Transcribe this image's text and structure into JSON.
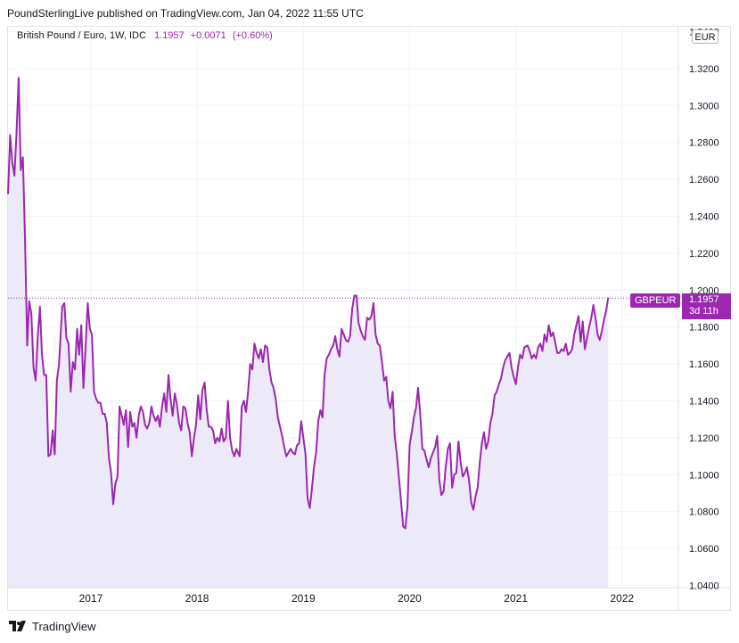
{
  "publisher_line": "PoundSterlingLive published on TradingView.com, Jan 04, 2022 11:55 UTC",
  "legend": {
    "symbol": "British Pound / Euro, 1W, IDC",
    "last": "1.1957",
    "change": "+0.0071",
    "change_pct": "(+0.60%)"
  },
  "currency_button": "EUR",
  "symbol_badge": "GBPEUR",
  "price_badge": {
    "price": "1.1957",
    "countdown": "3d 11h"
  },
  "footer": {
    "brand": "TradingView"
  },
  "colors": {
    "line": "#9c27b0",
    "fill": "#e8e7f7",
    "grid": "#f0f3fa"
  },
  "chart_data": {
    "type": "area",
    "title": "British Pound / Euro, 1W, IDC",
    "y_tick_labels": [
      "1.0400",
      "1.0600",
      "1.0800",
      "1.1000",
      "1.1200",
      "1.1400",
      "1.1600",
      "1.1800",
      "1.2000",
      "1.2200",
      "1.2400",
      "1.2600",
      "1.2800",
      "1.3000",
      "1.3200",
      "1.3400"
    ],
    "x_tick_labels": [
      "2017",
      "2018",
      "2019",
      "2020",
      "2021",
      "2022"
    ],
    "ylim": [
      1.04,
      1.34
    ],
    "xlim": [
      2016.22,
      2022.53
    ],
    "last_value": 1.1957,
    "series": [
      {
        "name": "GBPEUR",
        "points": [
          [
            2016.22,
            1.252
          ],
          [
            2016.24,
            1.284
          ],
          [
            2016.26,
            1.269
          ],
          [
            2016.28,
            1.262
          ],
          [
            2016.3,
            1.285
          ],
          [
            2016.32,
            1.315
          ],
          [
            2016.34,
            1.265
          ],
          [
            2016.36,
            1.272
          ],
          [
            2016.38,
            1.227
          ],
          [
            2016.4,
            1.17
          ],
          [
            2016.42,
            1.194
          ],
          [
            2016.44,
            1.187
          ],
          [
            2016.46,
            1.158
          ],
          [
            2016.48,
            1.151
          ],
          [
            2016.5,
            1.175
          ],
          [
            2016.52,
            1.191
          ],
          [
            2016.54,
            1.165
          ],
          [
            2016.56,
            1.154
          ],
          [
            2016.58,
            1.154
          ],
          [
            2016.6,
            1.11
          ],
          [
            2016.62,
            1.111
          ],
          [
            2016.64,
            1.124
          ],
          [
            2016.66,
            1.111
          ],
          [
            2016.68,
            1.151
          ],
          [
            2016.7,
            1.16
          ],
          [
            2016.73,
            1.191
          ],
          [
            2016.75,
            1.193
          ],
          [
            2016.77,
            1.174
          ],
          [
            2016.79,
            1.171
          ],
          [
            2016.81,
            1.145
          ],
          [
            2016.83,
            1.161
          ],
          [
            2016.85,
            1.157
          ],
          [
            2016.87,
            1.179
          ],
          [
            2016.89,
            1.165
          ],
          [
            2016.91,
            1.181
          ],
          [
            2016.93,
            1.147
          ],
          [
            2016.95,
            1.169
          ],
          [
            2016.97,
            1.193
          ],
          [
            2016.99,
            1.179
          ],
          [
            2017.01,
            1.176
          ],
          [
            2017.03,
            1.145
          ],
          [
            2017.05,
            1.141
          ],
          [
            2017.07,
            1.139
          ],
          [
            2017.09,
            1.139
          ],
          [
            2017.11,
            1.133
          ],
          [
            2017.13,
            1.133
          ],
          [
            2017.15,
            1.128
          ],
          [
            2017.17,
            1.109
          ],
          [
            2017.19,
            1.101
          ],
          [
            2017.21,
            1.084
          ],
          [
            2017.23,
            1.095
          ],
          [
            2017.25,
            1.099
          ],
          [
            2017.27,
            1.137
          ],
          [
            2017.29,
            1.132
          ],
          [
            2017.31,
            1.127
          ],
          [
            2017.33,
            1.135
          ],
          [
            2017.35,
            1.115
          ],
          [
            2017.37,
            1.134
          ],
          [
            2017.39,
            1.126
          ],
          [
            2017.41,
            1.128
          ],
          [
            2017.43,
            1.12
          ],
          [
            2017.45,
            1.132
          ],
          [
            2017.47,
            1.137
          ],
          [
            2017.49,
            1.134
          ],
          [
            2017.51,
            1.127
          ],
          [
            2017.53,
            1.125
          ],
          [
            2017.55,
            1.128
          ],
          [
            2017.57,
            1.137
          ],
          [
            2017.59,
            1.132
          ],
          [
            2017.61,
            1.129
          ],
          [
            2017.63,
            1.132
          ],
          [
            2017.65,
            1.126
          ],
          [
            2017.67,
            1.137
          ],
          [
            2017.69,
            1.144
          ],
          [
            2017.71,
            1.134
          ],
          [
            2017.73,
            1.154
          ],
          [
            2017.75,
            1.141
          ],
          [
            2017.77,
            1.132
          ],
          [
            2017.79,
            1.144
          ],
          [
            2017.81,
            1.138
          ],
          [
            2017.83,
            1.128
          ],
          [
            2017.85,
            1.124
          ],
          [
            2017.87,
            1.137
          ],
          [
            2017.89,
            1.136
          ],
          [
            2017.91,
            1.128
          ],
          [
            2017.93,
            1.123
          ],
          [
            2017.95,
            1.11
          ],
          [
            2017.97,
            1.12
          ],
          [
            2017.99,
            1.127
          ],
          [
            2018.01,
            1.143
          ],
          [
            2018.03,
            1.13
          ],
          [
            2018.05,
            1.146
          ],
          [
            2018.07,
            1.15
          ],
          [
            2018.09,
            1.135
          ],
          [
            2018.11,
            1.126
          ],
          [
            2018.13,
            1.126
          ],
          [
            2018.15,
            1.124
          ],
          [
            2018.17,
            1.117
          ],
          [
            2018.19,
            1.12
          ],
          [
            2018.21,
            1.118
          ],
          [
            2018.23,
            1.125
          ],
          [
            2018.25,
            1.118
          ],
          [
            2018.27,
            1.12
          ],
          [
            2018.29,
            1.14
          ],
          [
            2018.31,
            1.12
          ],
          [
            2018.33,
            1.113
          ],
          [
            2018.35,
            1.11
          ],
          [
            2018.37,
            1.114
          ],
          [
            2018.4,
            1.11
          ],
          [
            2018.42,
            1.137
          ],
          [
            2018.44,
            1.14
          ],
          [
            2018.46,
            1.134
          ],
          [
            2018.48,
            1.145
          ],
          [
            2018.5,
            1.16
          ],
          [
            2018.52,
            1.157
          ],
          [
            2018.54,
            1.171
          ],
          [
            2018.56,
            1.166
          ],
          [
            2018.58,
            1.163
          ],
          [
            2018.6,
            1.168
          ],
          [
            2018.62,
            1.161
          ],
          [
            2018.64,
            1.17
          ],
          [
            2018.66,
            1.169
          ],
          [
            2018.68,
            1.157
          ],
          [
            2018.7,
            1.15
          ],
          [
            2018.72,
            1.147
          ],
          [
            2018.74,
            1.141
          ],
          [
            2018.76,
            1.131
          ],
          [
            2018.78,
            1.126
          ],
          [
            2018.8,
            1.121
          ],
          [
            2018.82,
            1.115
          ],
          [
            2018.84,
            1.11
          ],
          [
            2018.86,
            1.112
          ],
          [
            2018.88,
            1.114
          ],
          [
            2018.9,
            1.112
          ],
          [
            2018.92,
            1.111
          ],
          [
            2018.94,
            1.116
          ],
          [
            2018.96,
            1.117
          ],
          [
            2018.98,
            1.129
          ],
          [
            2019.0,
            1.12
          ],
          [
            2019.02,
            1.111
          ],
          [
            2019.04,
            1.087
          ],
          [
            2019.06,
            1.082
          ],
          [
            2019.08,
            1.092
          ],
          [
            2019.1,
            1.104
          ],
          [
            2019.12,
            1.112
          ],
          [
            2019.14,
            1.129
          ],
          [
            2019.16,
            1.135
          ],
          [
            2019.18,
            1.131
          ],
          [
            2019.2,
            1.154
          ],
          [
            2019.22,
            1.163
          ],
          [
            2019.24,
            1.165
          ],
          [
            2019.26,
            1.168
          ],
          [
            2019.28,
            1.17
          ],
          [
            2019.3,
            1.175
          ],
          [
            2019.32,
            1.168
          ],
          [
            2019.34,
            1.164
          ],
          [
            2019.36,
            1.179
          ],
          [
            2019.38,
            1.176
          ],
          [
            2019.4,
            1.173
          ],
          [
            2019.42,
            1.172
          ],
          [
            2019.44,
            1.175
          ],
          [
            2019.46,
            1.19
          ],
          [
            2019.48,
            1.197
          ],
          [
            2019.5,
            1.197
          ],
          [
            2019.52,
            1.182
          ],
          [
            2019.54,
            1.178
          ],
          [
            2019.56,
            1.175
          ],
          [
            2019.58,
            1.173
          ],
          [
            2019.6,
            1.185
          ],
          [
            2019.62,
            1.184
          ],
          [
            2019.64,
            1.186
          ],
          [
            2019.66,
            1.193
          ],
          [
            2019.68,
            1.176
          ],
          [
            2019.7,
            1.171
          ],
          [
            2019.72,
            1.17
          ],
          [
            2019.74,
            1.161
          ],
          [
            2019.76,
            1.151
          ],
          [
            2019.78,
            1.153
          ],
          [
            2019.8,
            1.14
          ],
          [
            2019.82,
            1.136
          ],
          [
            2019.84,
            1.145
          ],
          [
            2019.86,
            1.121
          ],
          [
            2019.88,
            1.111
          ],
          [
            2019.9,
            1.098
          ],
          [
            2019.92,
            1.085
          ],
          [
            2019.94,
            1.072
          ],
          [
            2019.96,
            1.071
          ],
          [
            2019.98,
            1.083
          ],
          [
            2020.0,
            1.116
          ],
          [
            2020.02,
            1.123
          ],
          [
            2020.04,
            1.131
          ],
          [
            2020.06,
            1.136
          ],
          [
            2020.08,
            1.147
          ],
          [
            2020.1,
            1.133
          ],
          [
            2020.12,
            1.114
          ],
          [
            2020.14,
            1.113
          ],
          [
            2020.16,
            1.108
          ],
          [
            2020.18,
            1.104
          ],
          [
            2020.2,
            1.109
          ],
          [
            2020.22,
            1.112
          ],
          [
            2020.24,
            1.115
          ],
          [
            2020.26,
            1.121
          ],
          [
            2020.28,
            1.097
          ],
          [
            2020.3,
            1.089
          ],
          [
            2020.32,
            1.091
          ],
          [
            2020.34,
            1.104
          ],
          [
            2020.36,
            1.114
          ],
          [
            2020.38,
            1.117
          ],
          [
            2020.4,
            1.093
          ],
          [
            2020.42,
            1.1
          ],
          [
            2020.44,
            1.101
          ],
          [
            2020.46,
            1.118
          ],
          [
            2020.48,
            1.107
          ],
          [
            2020.5,
            1.099
          ],
          [
            2020.52,
            1.101
          ],
          [
            2020.54,
            1.104
          ],
          [
            2020.56,
            1.097
          ],
          [
            2020.58,
            1.085
          ],
          [
            2020.6,
            1.081
          ],
          [
            2020.62,
            1.088
          ],
          [
            2020.64,
            1.093
          ],
          [
            2020.66,
            1.106
          ],
          [
            2020.68,
            1.117
          ],
          [
            2020.7,
            1.123
          ],
          [
            2020.72,
            1.114
          ],
          [
            2020.74,
            1.118
          ],
          [
            2020.76,
            1.128
          ],
          [
            2020.78,
            1.133
          ],
          [
            2020.8,
            1.143
          ],
          [
            2020.82,
            1.145
          ],
          [
            2020.84,
            1.149
          ],
          [
            2020.86,
            1.152
          ],
          [
            2020.88,
            1.158
          ],
          [
            2020.9,
            1.162
          ],
          [
            2020.92,
            1.164
          ],
          [
            2020.94,
            1.166
          ],
          [
            2020.96,
            1.158
          ],
          [
            2020.98,
            1.153
          ],
          [
            2021.0,
            1.149
          ],
          [
            2021.02,
            1.158
          ],
          [
            2021.04,
            1.165
          ],
          [
            2021.06,
            1.163
          ],
          [
            2021.08,
            1.169
          ],
          [
            2021.11,
            1.17
          ],
          [
            2021.13,
            1.167
          ],
          [
            2021.15,
            1.163
          ],
          [
            2021.17,
            1.165
          ],
          [
            2021.19,
            1.163
          ],
          [
            2021.21,
            1.169
          ],
          [
            2021.23,
            1.171
          ],
          [
            2021.25,
            1.167
          ],
          [
            2021.27,
            1.176
          ],
          [
            2021.29,
            1.172
          ],
          [
            2021.31,
            1.181
          ],
          [
            2021.33,
            1.175
          ],
          [
            2021.35,
            1.177
          ],
          [
            2021.37,
            1.172
          ],
          [
            2021.39,
            1.166
          ],
          [
            2021.41,
            1.166
          ],
          [
            2021.43,
            1.168
          ],
          [
            2021.45,
            1.167
          ],
          [
            2021.47,
            1.171
          ],
          [
            2021.49,
            1.165
          ],
          [
            2021.51,
            1.166
          ],
          [
            2021.53,
            1.168
          ],
          [
            2021.55,
            1.176
          ],
          [
            2021.57,
            1.181
          ],
          [
            2021.59,
            1.186
          ],
          [
            2021.61,
            1.172
          ],
          [
            2021.63,
            1.183
          ],
          [
            2021.65,
            1.168
          ],
          [
            2021.67,
            1.174
          ],
          [
            2021.69,
            1.18
          ],
          [
            2021.71,
            1.185
          ],
          [
            2021.73,
            1.192
          ],
          [
            2021.75,
            1.185
          ],
          [
            2021.77,
            1.176
          ],
          [
            2021.79,
            1.173
          ],
          [
            2021.81,
            1.178
          ],
          [
            2021.83,
            1.184
          ],
          [
            2021.85,
            1.189
          ],
          [
            2021.87,
            1.196
          ]
        ]
      }
    ]
  }
}
